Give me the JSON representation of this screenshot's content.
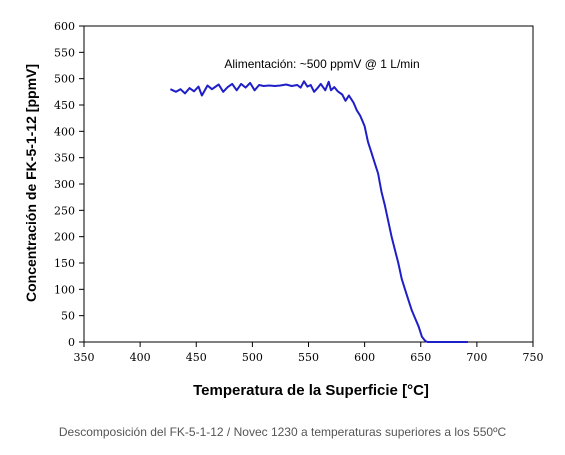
{
  "chart_data": {
    "type": "line",
    "title": "",
    "xlabel": "Temperatura de la Superficie [°C]",
    "ylabel": "Concentración de FK-5-1-12 [ppmV]",
    "xlim": [
      350,
      750
    ],
    "ylim": [
      0,
      600
    ],
    "xticks": [
      350,
      400,
      450,
      500,
      550,
      600,
      650,
      700,
      750
    ],
    "yticks": [
      0,
      50,
      100,
      150,
      200,
      250,
      300,
      350,
      400,
      450,
      500,
      550,
      600
    ],
    "grid": false,
    "annotation": "Alimentación: ~500 ppmV @ 1 L/min",
    "series": [
      {
        "color": "#1f1fc8",
        "x": [
          427,
          432,
          436,
          440,
          444,
          448,
          452,
          455,
          460,
          464,
          468,
          470,
          474,
          478,
          482,
          486,
          490,
          494,
          498,
          502,
          506,
          510,
          515,
          520,
          525,
          530,
          535,
          540,
          543,
          546,
          549,
          552,
          555,
          558,
          561,
          565,
          568,
          570,
          573,
          576,
          580,
          583,
          586,
          590,
          593,
          596,
          598,
          600,
          603,
          606,
          609,
          612,
          615,
          618,
          621,
          624,
          627,
          630,
          633,
          636,
          639,
          642,
          645,
          648,
          651,
          654,
          656,
          660,
          665,
          670,
          675,
          680,
          685,
          692
        ],
        "y": [
          480,
          475,
          480,
          472,
          482,
          476,
          485,
          468,
          487,
          480,
          486,
          489,
          475,
          484,
          490,
          478,
          490,
          483,
          492,
          478,
          488,
          486,
          487,
          486,
          487,
          489,
          486,
          488,
          483,
          495,
          485,
          488,
          475,
          482,
          490,
          478,
          494,
          478,
          484,
          476,
          470,
          458,
          468,
          455,
          440,
          430,
          420,
          410,
          380,
          360,
          340,
          320,
          285,
          260,
          230,
          200,
          175,
          150,
          120,
          100,
          80,
          60,
          45,
          30,
          10,
          2,
          0,
          0,
          0,
          0,
          0,
          0,
          0,
          0
        ]
      }
    ]
  },
  "caption": "Descomposición del FK-5-1-12 / Novec 1230 a temperaturas superiores a los 550ºC"
}
